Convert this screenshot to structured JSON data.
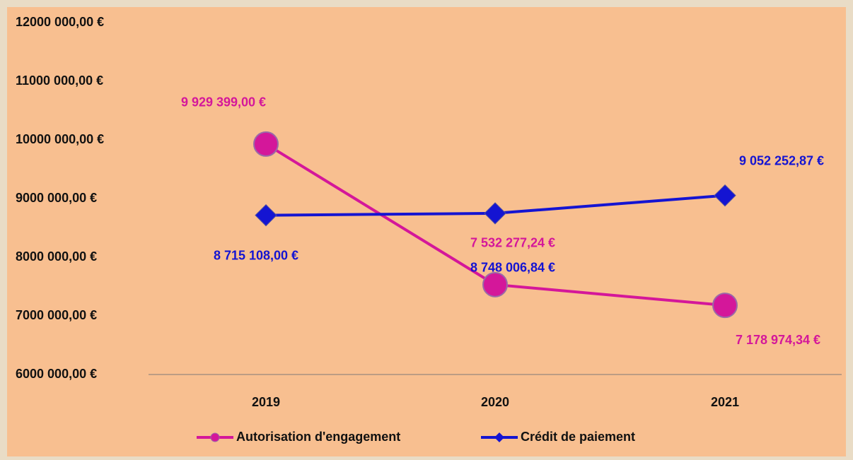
{
  "chart_data": {
    "type": "line",
    "categories": [
      "2019",
      "2020",
      "2021"
    ],
    "series": [
      {
        "name": "Autorisation d'engagement",
        "color": "#d4179a",
        "marker": "circle",
        "values": [
          9929399.0,
          7532277.24,
          7178974.34
        ],
        "value_labels": [
          "9 929 399,00 €",
          "7 532 277,24 €",
          "7 178 974,34 €"
        ]
      },
      {
        "name": "Crédit de paiement",
        "color": "#1414d2",
        "marker": "diamond",
        "values": [
          8715108.0,
          8748006.84,
          9052252.87
        ],
        "value_labels": [
          "8 715 108,00 €",
          "8 748 006,84 €",
          "9 052 252,87 €"
        ]
      }
    ],
    "ylim": [
      6000000,
      12000000
    ],
    "yticks": [
      {
        "value": 6000000,
        "label": "6000 000,00 €"
      },
      {
        "value": 7000000,
        "label": "7000 000,00 €"
      },
      {
        "value": 8000000,
        "label": "8000 000,00 €"
      },
      {
        "value": 9000000,
        "label": "9000 000,00 €"
      },
      {
        "value": 10000000,
        "label": "10000 000,00 €"
      },
      {
        "value": 11000000,
        "label": "11000 000,00 €"
      },
      {
        "value": 12000000,
        "label": "12000 000,00 €"
      }
    ],
    "grid": false,
    "legend": "bottom"
  }
}
